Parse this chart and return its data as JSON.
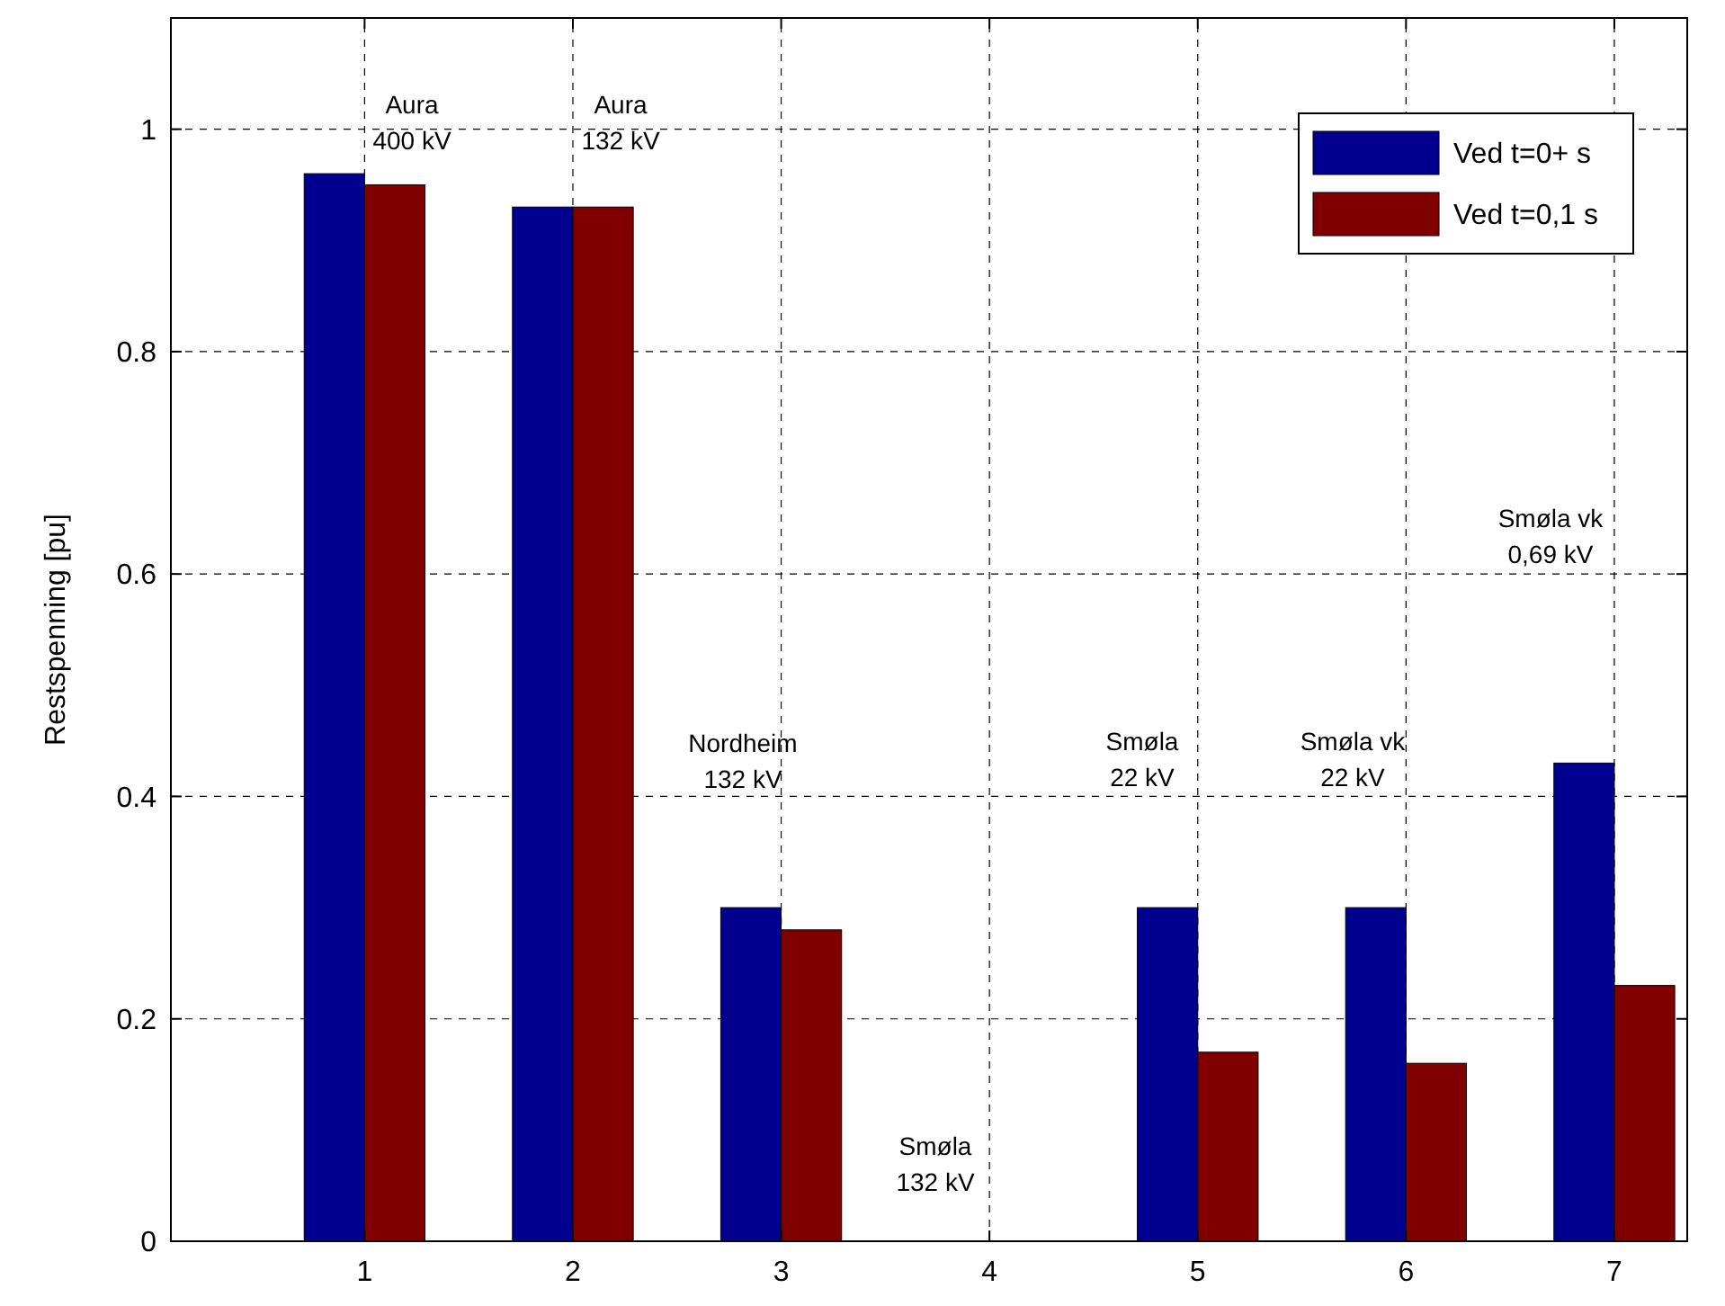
{
  "chart_data": {
    "type": "bar",
    "ylabel": "Restspenning [pu]",
    "x": [
      1,
      2,
      3,
      4,
      5,
      6,
      7
    ],
    "xlim": [
      0.07,
      7.35
    ],
    "xticks": [
      1,
      2,
      3,
      4,
      5,
      6,
      7
    ],
    "ylim": [
      0,
      1.1
    ],
    "yticks": [
      0,
      0.2,
      0.4,
      0.6,
      0.8,
      1
    ],
    "series": [
      {
        "name": "Ved t=0+ s",
        "color": "#000090",
        "values": [
          0.96,
          0.93,
          0.3,
          0,
          0.3,
          0.3,
          0.43
        ]
      },
      {
        "name": "Ved t=0,1 s",
        "color": "#800000",
        "values": [
          0.95,
          0.93,
          0.28,
          0,
          0.17,
          0.16,
          0.23
        ]
      }
    ],
    "annotations": [
      "Aura\n400 kV",
      "Aura\n132 kV",
      "Nordheim\n132 kV",
      "Smøla\n132 kV",
      "Smøla\n22 kV",
      "Smøla vk\n22 kV",
      "Smøla vk\n0,69 kV"
    ],
    "grid": true,
    "legend": "top right"
  }
}
